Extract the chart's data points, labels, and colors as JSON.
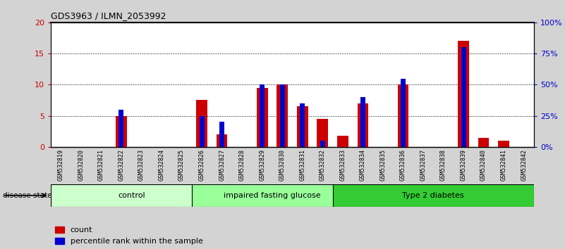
{
  "title": "GDS3963 / ILMN_2053992",
  "samples": [
    "GSM532819",
    "GSM532820",
    "GSM532821",
    "GSM532822",
    "GSM532823",
    "GSM532824",
    "GSM532825",
    "GSM532826",
    "GSM532827",
    "GSM532828",
    "GSM532829",
    "GSM532830",
    "GSM532831",
    "GSM532832",
    "GSM532833",
    "GSM532834",
    "GSM532835",
    "GSM532836",
    "GSM532837",
    "GSM532838",
    "GSM532839",
    "GSM532840",
    "GSM532841",
    "GSM532842"
  ],
  "count_values": [
    0,
    0,
    0,
    5,
    0,
    0,
    0,
    7.5,
    2,
    0,
    9.5,
    10,
    6.5,
    4.5,
    1.8,
    7,
    0,
    10,
    0,
    0,
    17,
    1.5,
    1,
    0
  ],
  "percentile_values": [
    0,
    0,
    0,
    30,
    0,
    0,
    0,
    25,
    20,
    0,
    50,
    50,
    35,
    5,
    0,
    40,
    0,
    55,
    0,
    0,
    80,
    0,
    0,
    0
  ],
  "count_color": "#cc0000",
  "percentile_color": "#0000cc",
  "ylim_left": [
    0,
    20
  ],
  "ylim_right": [
    0,
    100
  ],
  "yticks_left": [
    0,
    5,
    10,
    15,
    20
  ],
  "ytick_labels_left": [
    "0",
    "5",
    "10",
    "15",
    "20"
  ],
  "yticks_right": [
    0,
    25,
    50,
    75,
    100
  ],
  "ytick_labels_right": [
    "0%",
    "25%",
    "50%",
    "75%",
    "100%"
  ],
  "groups": [
    {
      "label": "control",
      "start": 0,
      "end": 7,
      "color": "#ccffcc"
    },
    {
      "label": "impaired fasting glucose",
      "start": 7,
      "end": 14,
      "color": "#99ff99"
    },
    {
      "label": "Type 2 diabetes",
      "start": 14,
      "end": 23,
      "color": "#33cc33"
    }
  ],
  "disease_state_label": "disease state",
  "legend_count_label": "count",
  "legend_percentile_label": "percentile rank within the sample",
  "bar_width": 0.55,
  "background_color": "#d3d3d3",
  "plot_bg_color": "#ffffff"
}
